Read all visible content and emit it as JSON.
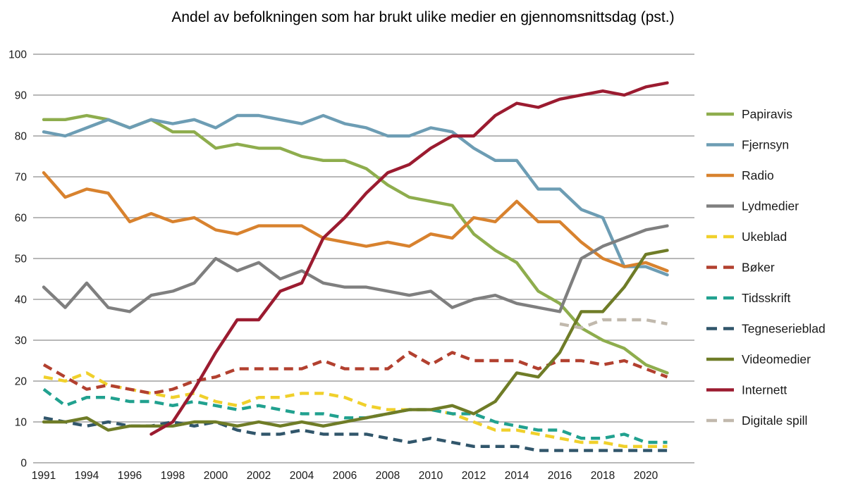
{
  "title": "Andel av befolkningen som har brukt ulike medier en gjennomsnittsdag (pst.)",
  "colors": {
    "background": "#ffffff",
    "gridline": "#a0a0a0",
    "axis_text": "#1a1a1a",
    "title_text": "#000000"
  },
  "chart_data": {
    "type": "line",
    "title": "Andel av befolkningen som har brukt ulike medier en gjennomsnittsdag (pst.)",
    "xlabel": "",
    "ylabel": "",
    "grid": "horizontal",
    "legend_position": "right",
    "y_axis": {
      "min": 0,
      "max": 100,
      "step": 10
    },
    "y_tick_labels": [
      100,
      90,
      80,
      70,
      60,
      50,
      40,
      30,
      20,
      10,
      0
    ],
    "x": [
      1991,
      1992,
      1994,
      1995,
      1996,
      1997,
      1998,
      1999,
      2000,
      2001,
      2002,
      2003,
      2004,
      2005,
      2006,
      2007,
      2008,
      2009,
      2010,
      2011,
      2012,
      2013,
      2014,
      2015,
      2016,
      2017,
      2018,
      2019,
      2020,
      2021
    ],
    "x_tick_labels": [
      1991,
      1994,
      1996,
      1998,
      2000,
      2002,
      2004,
      2006,
      2008,
      2010,
      2012,
      2014,
      2016,
      2018,
      2020
    ],
    "series": [
      {
        "name": "Papiravis",
        "color": "#8EAD4D",
        "style": "solid",
        "values": [
          84,
          84,
          85,
          84,
          82,
          84,
          81,
          81,
          77,
          78,
          77,
          77,
          75,
          74,
          74,
          72,
          68,
          65,
          64,
          63,
          56,
          52,
          49,
          42,
          39,
          33,
          30,
          28,
          24,
          22
        ]
      },
      {
        "name": "Fjernsyn",
        "color": "#6D9DB4",
        "style": "solid",
        "values": [
          81,
          80,
          82,
          84,
          82,
          84,
          83,
          84,
          82,
          85,
          85,
          84,
          83,
          85,
          83,
          82,
          80,
          80,
          82,
          81,
          77,
          74,
          74,
          67,
          67,
          62,
          60,
          48,
          48,
          46
        ]
      },
      {
        "name": "Radio",
        "color": "#D8822E",
        "style": "solid",
        "values": [
          71,
          65,
          67,
          66,
          59,
          61,
          59,
          60,
          57,
          56,
          58,
          58,
          58,
          55,
          54,
          53,
          54,
          53,
          56,
          55,
          60,
          59,
          64,
          59,
          59,
          54,
          50,
          48,
          49,
          47
        ]
      },
      {
        "name": "Lydmedier",
        "color": "#7F7F7F",
        "style": "solid",
        "values": [
          43,
          38,
          44,
          38,
          37,
          41,
          42,
          44,
          50,
          47,
          49,
          45,
          47,
          44,
          43,
          43,
          42,
          41,
          42,
          38,
          40,
          41,
          39,
          38,
          37,
          50,
          53,
          55,
          57,
          58
        ]
      },
      {
        "name": "Ukeblad",
        "color": "#F0D02B",
        "style": "dashed",
        "values": [
          21,
          20,
          22,
          19,
          18,
          17,
          16,
          17,
          15,
          14,
          16,
          16,
          17,
          17,
          16,
          14,
          13,
          13,
          13,
          12,
          10,
          8,
          8,
          7,
          6,
          5,
          5,
          4,
          4,
          4
        ]
      },
      {
        "name": "Bøker",
        "color": "#B2402F",
        "style": "dashed",
        "values": [
          24,
          21,
          18,
          19,
          18,
          17,
          18,
          20,
          21,
          23,
          23,
          23,
          23,
          25,
          23,
          23,
          23,
          27,
          24,
          27,
          25,
          25,
          25,
          23,
          25,
          25,
          24,
          25,
          23,
          21
        ]
      },
      {
        "name": "Tidsskrift",
        "color": "#21A18F",
        "style": "dashed",
        "values": [
          18,
          14,
          16,
          16,
          15,
          15,
          14,
          15,
          14,
          13,
          14,
          13,
          12,
          12,
          11,
          11,
          12,
          13,
          13,
          12,
          12,
          10,
          9,
          8,
          8,
          6,
          6,
          7,
          5,
          5
        ]
      },
      {
        "name": "Tegneserieblad",
        "color": "#31566B",
        "style": "dashed",
        "values": [
          11,
          10,
          9,
          10,
          9,
          9,
          10,
          9,
          10,
          8,
          7,
          7,
          8,
          7,
          7,
          7,
          6,
          5,
          6,
          5,
          4,
          4,
          4,
          3,
          3,
          3,
          3,
          3,
          3,
          3
        ]
      },
      {
        "name": "Videomedier",
        "color": "#6F7C27",
        "style": "solid",
        "values": [
          10,
          10,
          11,
          8,
          9,
          9,
          9,
          10,
          10,
          9,
          10,
          9,
          10,
          9,
          10,
          11,
          12,
          13,
          13,
          14,
          12,
          15,
          22,
          21,
          27,
          37,
          37,
          43,
          51,
          52
        ]
      },
      {
        "name": "Internett",
        "color": "#9B1B30",
        "style": "solid",
        "values": [
          null,
          null,
          null,
          null,
          null,
          7,
          10,
          18,
          27,
          35,
          35,
          42,
          44,
          55,
          60,
          66,
          71,
          73,
          77,
          80,
          80,
          85,
          88,
          87,
          89,
          90,
          91,
          90,
          92,
          93
        ]
      },
      {
        "name": "Digitale spill",
        "color": "#C1B9AD",
        "style": "dashed",
        "values": [
          null,
          null,
          null,
          null,
          null,
          null,
          null,
          null,
          null,
          null,
          null,
          null,
          null,
          null,
          null,
          null,
          null,
          null,
          null,
          null,
          null,
          null,
          null,
          null,
          34,
          33,
          35,
          35,
          35,
          34
        ]
      }
    ]
  }
}
